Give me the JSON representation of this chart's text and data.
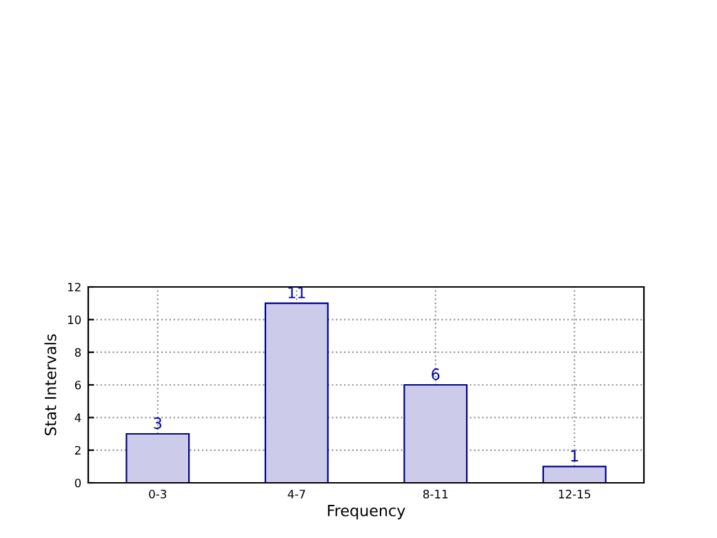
{
  "chart_data": {
    "type": "bar",
    "xlabel": "Frequency",
    "ylabel": "Stat Intervals",
    "categories": [
      "0-3",
      "4-7",
      "8-11",
      "12-15"
    ],
    "values": [
      3,
      11,
      6,
      1
    ],
    "color": "#ccccea",
    "ylim": [
      0,
      12
    ],
    "yticks": [
      0,
      2,
      4,
      6,
      8,
      10,
      12
    ],
    "grid": true,
    "data_labels": true
  }
}
